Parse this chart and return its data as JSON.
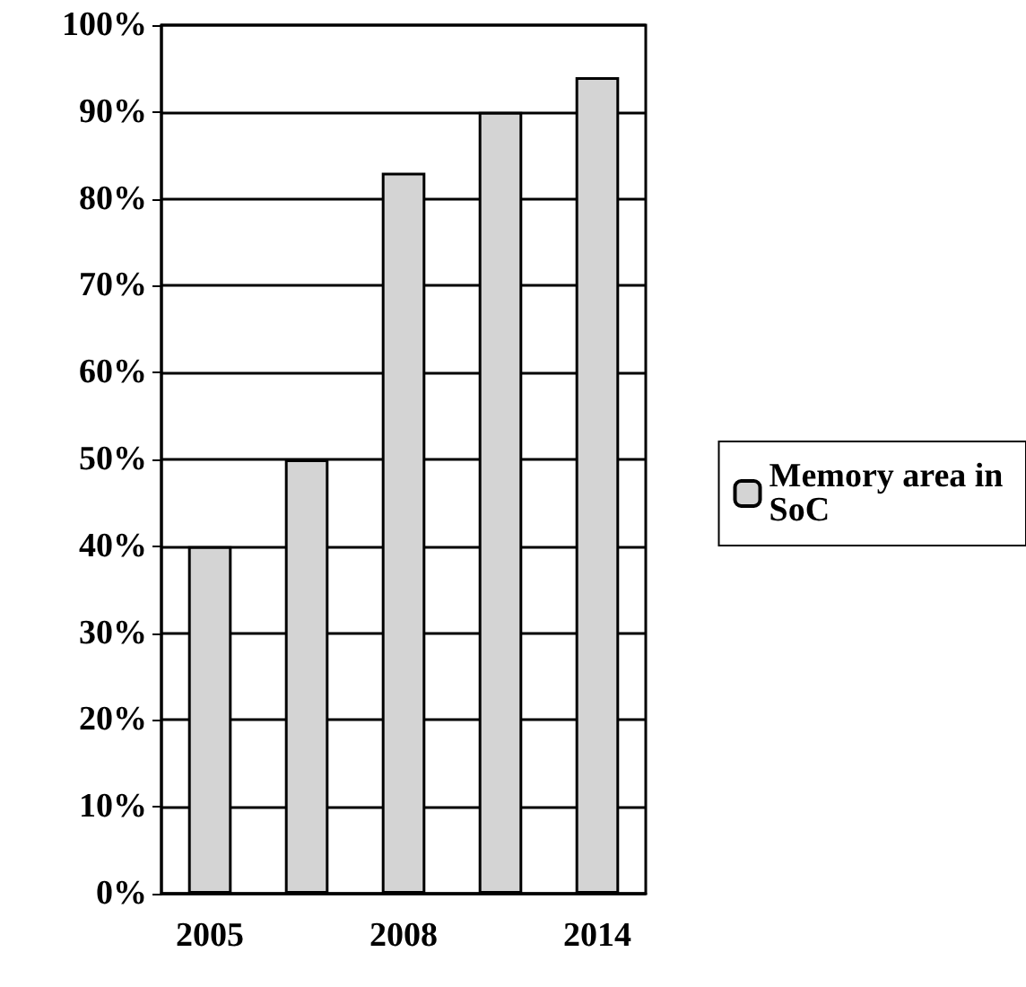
{
  "chart_data": {
    "type": "bar",
    "categories": [
      "2005",
      null,
      "2008",
      null,
      "2014"
    ],
    "series": [
      {
        "name": "Memory area in SoC",
        "color": "#d4d4d4",
        "values": [
          40,
          50,
          83,
          90,
          94
        ]
      }
    ],
    "ylim": [
      0,
      100
    ],
    "yticks": [
      {
        "value": 0,
        "label": "0%"
      },
      {
        "value": 10,
        "label": "10%"
      },
      {
        "value": 20,
        "label": "20%"
      },
      {
        "value": 30,
        "label": "30%"
      },
      {
        "value": 40,
        "label": "40%"
      },
      {
        "value": 50,
        "label": "50%"
      },
      {
        "value": 60,
        "label": "60%"
      },
      {
        "value": 70,
        "label": "70%"
      },
      {
        "value": 80,
        "label": "80%"
      },
      {
        "value": 90,
        "label": "90%"
      },
      {
        "value": 100,
        "label": "100%"
      }
    ],
    "grid": "y",
    "legend": "right"
  }
}
